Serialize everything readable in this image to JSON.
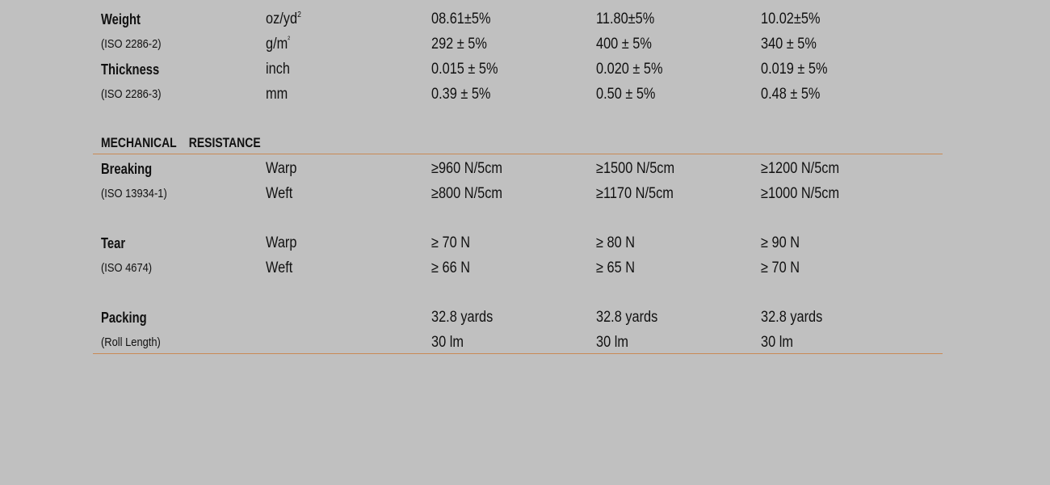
{
  "accent_color": "#c98a55",
  "rows_top": [
    {
      "label": "Weight",
      "style": "bold",
      "unit": "oz/yd",
      "unit_sup": "2",
      "values": [
        "08.61±5%",
        "11.80±5%",
        "10.02±5%"
      ]
    },
    {
      "label": "(ISO 2286-2)",
      "style": "small",
      "unit": "g/m",
      "unit_sup": "²",
      "values": [
        "292 ± 5%",
        "400 ± 5%",
        "340 ± 5%"
      ]
    },
    {
      "label": "Thickness",
      "style": "bold",
      "unit": "inch",
      "values": [
        "0.015 ± 5%",
        "0.020 ± 5%",
        "0.019 ± 5%"
      ]
    },
    {
      "label": "(ISO 2286-3)",
      "style": "small",
      "unit": "mm",
      "values": [
        "0.39 ± 5%",
        "0.50 ± 5%",
        "0.48 ± 5%"
      ]
    }
  ],
  "section_heading": "MECHANICAL RESISTANCE",
  "rows_mech": [
    {
      "label": "Breaking",
      "style": "bold",
      "unit": "Warp",
      "values": [
        "≥960 N/5cm",
        "≥1500 N/5cm",
        "≥1200 N/5cm"
      ]
    },
    {
      "label": "(ISO 13934-1)",
      "style": "small",
      "unit": "Weft",
      "values": [
        "≥800 N/5cm",
        "≥1170 N/5cm",
        "≥1000 N/5cm"
      ]
    },
    {
      "label": "Tear",
      "style": "bold",
      "unit": "Warp",
      "values": [
        "≥ 70 N",
        "≥ 80 N",
        "≥ 90 N"
      ]
    },
    {
      "label": "(ISO 4674)",
      "style": "small",
      "unit": "Weft",
      "values": [
        "≥ 66 N",
        "≥ 65 N",
        "≥ 70 N"
      ]
    },
    {
      "label": "Packing",
      "style": "bold",
      "unit": "",
      "values": [
        "32.8 yards",
        "32.8 yards",
        "32.8 yards"
      ]
    },
    {
      "label": "(Roll Length)",
      "style": "small",
      "unit": "",
      "values": [
        "30 lm",
        "30 lm",
        "30 lm"
      ]
    }
  ]
}
